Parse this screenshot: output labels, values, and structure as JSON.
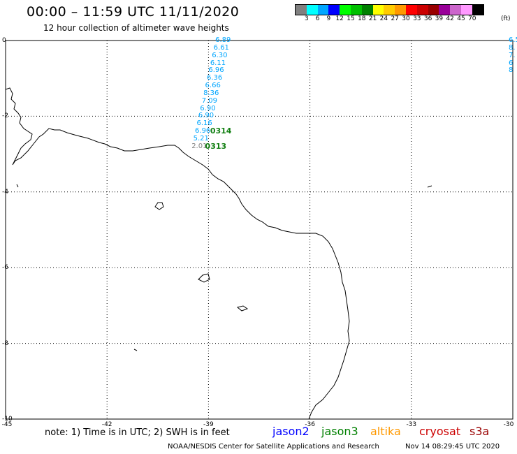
{
  "header": {
    "title": "00:00 – 11:59 UTC 11/11/2020",
    "subtitle": "12 hour collection of altimeter wave heights"
  },
  "colorbar": {
    "colors": [
      "#808080",
      "#00ffff",
      "#00a6ff",
      "#0000ff",
      "#00ff00",
      "#00c000",
      "#008000",
      "#ffff00",
      "#ffcc00",
      "#ff9900",
      "#ff0000",
      "#cc0000",
      "#990000",
      "#990099",
      "#cc66cc",
      "#ff99ff",
      "#000000"
    ],
    "labels": [
      "3",
      "6",
      "9",
      "12",
      "15",
      "18",
      "21",
      "24",
      "27",
      "30",
      "33",
      "36",
      "39",
      "42",
      "45",
      "70"
    ],
    "unit": "(ft)"
  },
  "map": {
    "lon_ticks": [
      "-45",
      "-42",
      "-39",
      "-36",
      "-33",
      "-30"
    ],
    "lat_ticks": [
      "0",
      "-2",
      "-4",
      "-6",
      "-8",
      "-10"
    ],
    "wave_heights_track_west": [
      {
        "value": "6.89",
        "lon": -38.8,
        "lat": 0.0
      },
      {
        "value": "6.61",
        "lon": -38.85,
        "lat": -0.2
      },
      {
        "value": "6.30",
        "lon": -38.9,
        "lat": -0.4
      },
      {
        "value": "6.11",
        "lon": -38.95,
        "lat": -0.6
      },
      {
        "value": "6.96",
        "lon": -39.0,
        "lat": -0.8
      },
      {
        "value": "6.36",
        "lon": -39.05,
        "lat": -1.0
      },
      {
        "value": "6.66",
        "lon": -39.1,
        "lat": -1.2
      },
      {
        "value": "8.36",
        "lon": -39.15,
        "lat": -1.4
      },
      {
        "value": "7.09",
        "lon": -39.2,
        "lat": -1.6
      },
      {
        "value": "6.90",
        "lon": -39.25,
        "lat": -1.8
      },
      {
        "value": "6.90",
        "lon": -39.3,
        "lat": -2.0
      },
      {
        "value": "6.16",
        "lon": -39.35,
        "lat": -2.2
      },
      {
        "value": "6.96",
        "lon": -39.4,
        "lat": -2.4
      },
      {
        "value": "5.21",
        "lon": -39.45,
        "lat": -2.6
      },
      {
        "value": "2.01",
        "lon": -39.5,
        "lat": -2.8
      }
    ],
    "wave_heights_track_east": [
      {
        "value": "6.5",
        "lon": -30.0,
        "lat": 0.0
      },
      {
        "value": "8.",
        "lon": -30.0,
        "lat": -0.2
      },
      {
        "value": "7.",
        "lon": -30.0,
        "lat": -0.4
      },
      {
        "value": "6",
        "lon": -30.0,
        "lat": -0.6
      },
      {
        "value": "8",
        "lon": -30.0,
        "lat": -0.8
      }
    ],
    "pass_times": [
      {
        "label": "0314",
        "lon": -38.95,
        "lat": -2.4
      },
      {
        "label": "0313",
        "lon": -39.1,
        "lat": -2.8
      }
    ]
  },
  "footer": {
    "note": "note: 1) Time is in UTC; 2) SWH is in feet",
    "satellites": [
      {
        "name": "jason2",
        "color": "#0000ff"
      },
      {
        "name": "jason3",
        "color": "#008000"
      },
      {
        "name": "altika",
        "color": "#ff9900"
      },
      {
        "name": "cryosat",
        "color": "#cc0000"
      },
      {
        "name": "s3a",
        "color": "#990000"
      }
    ],
    "credit": "NOAA/NESDIS Center for Satellite Applications and Research",
    "timestamp": "Nov 14 08:29:45 UTC 2020"
  }
}
